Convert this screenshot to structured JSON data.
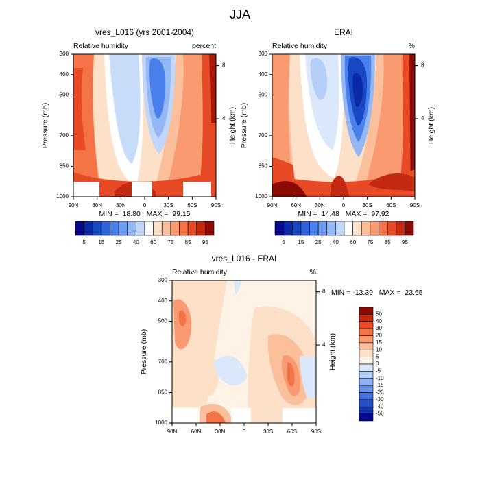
{
  "figure_title": "JJA",
  "chart_data": [
    {
      "type": "contour",
      "title": "vres_L016 (yrs 2001-2004)",
      "left_label": "Relative humidity",
      "right_label": "percent",
      "ylabel": "Pressure (mb)",
      "y2label": "Height (km)",
      "ylim": [
        1000,
        300
      ],
      "yticks": [
        300,
        400,
        500,
        700,
        850,
        1000
      ],
      "y2ticks": [
        4,
        8
      ],
      "xlim": [
        90,
        -90
      ],
      "xticks": [
        {
          "value": 90,
          "label": "90N"
        },
        {
          "value": 60,
          "label": "60N"
        },
        {
          "value": 30,
          "label": "30N"
        },
        0,
        {
          "value": -30,
          "label": "30S"
        },
        {
          "value": -60,
          "label": "60S"
        },
        {
          "value": -90,
          "label": "90S"
        }
      ],
      "stats": "MIN =  18.80   MAX =  99.15",
      "colorbar": {
        "orientation": "horizontal",
        "labels": [
          5,
          15,
          25,
          40,
          60,
          75,
          85,
          95
        ],
        "colors": [
          "#08088c",
          "#0c2aa8",
          "#1848c4",
          "#2d64dc",
          "#4a80ec",
          "#6d9cf2",
          "#94b8f6",
          "#c0d6fa",
          "#ffffff",
          "#fde0c8",
          "#fbbf9c",
          "#f99a70",
          "#f47448",
          "#e84a26",
          "#c42a12",
          "#8c0a04"
        ]
      }
    },
    {
      "type": "contour",
      "title": "ERAI",
      "left_label": "Relative humidity",
      "right_label": "%",
      "ylabel": "Pressure (mb)",
      "y2label": "Height (km)",
      "ylim": [
        1000,
        300
      ],
      "yticks": [
        300,
        400,
        500,
        700,
        850,
        1000
      ],
      "y2ticks": [
        4,
        8
      ],
      "xlim": [
        90,
        -90
      ],
      "xticks": [
        {
          "value": 90,
          "label": "90N"
        },
        {
          "value": 60,
          "label": "60N"
        },
        {
          "value": 30,
          "label": "30N"
        },
        0,
        {
          "value": -30,
          "label": "30S"
        },
        {
          "value": -60,
          "label": "60S"
        },
        {
          "value": -90,
          "label": "90S"
        }
      ],
      "stats": "MIN =  14.48   MAX =  97.92",
      "colorbar": {
        "orientation": "horizontal",
        "labels": [
          5,
          15,
          25,
          40,
          60,
          75,
          85,
          95
        ],
        "colors": [
          "#08088c",
          "#0c2aa8",
          "#1848c4",
          "#2d64dc",
          "#4a80ec",
          "#6d9cf2",
          "#94b8f6",
          "#c0d6fa",
          "#ffffff",
          "#fde0c8",
          "#fbbf9c",
          "#f99a70",
          "#f47448",
          "#e84a26",
          "#c42a12",
          "#8c0a04"
        ]
      }
    },
    {
      "type": "contour",
      "title": "vres_L016 - ERAI",
      "left_label": "Relative humidity",
      "right_label": "%",
      "ylabel": "Pressure (mb)",
      "y2label": "Height (km)",
      "ylim": [
        1000,
        300
      ],
      "yticks": [
        300,
        400,
        500,
        700,
        850,
        1000
      ],
      "y2ticks": [
        4,
        8
      ],
      "xlim": [
        90,
        -90
      ],
      "xticks": [
        {
          "value": 90,
          "label": "90N"
        },
        {
          "value": 60,
          "label": "60N"
        },
        {
          "value": 30,
          "label": "30N"
        },
        0,
        {
          "value": -30,
          "label": "30S"
        },
        {
          "value": -60,
          "label": "60S"
        },
        {
          "value": -90,
          "label": "90S"
        }
      ],
      "stats": "MIN = -13.39   MAX =  23.65",
      "colorbar": {
        "orientation": "vertical",
        "labels": [
          50,
          40,
          30,
          20,
          15,
          10,
          5,
          0,
          -5,
          -10,
          -15,
          -20,
          -30,
          -40,
          -50
        ],
        "colors": [
          "#8c0a04",
          "#c42a12",
          "#e84a26",
          "#f47448",
          "#f99a70",
          "#fbbf9c",
          "#fde0c8",
          "#fff2e6",
          "#dbe8fb",
          "#b4cef8",
          "#8cb0f4",
          "#6690ee",
          "#4270e0",
          "#2450c8",
          "#1232aa",
          "#08088c"
        ]
      }
    }
  ]
}
